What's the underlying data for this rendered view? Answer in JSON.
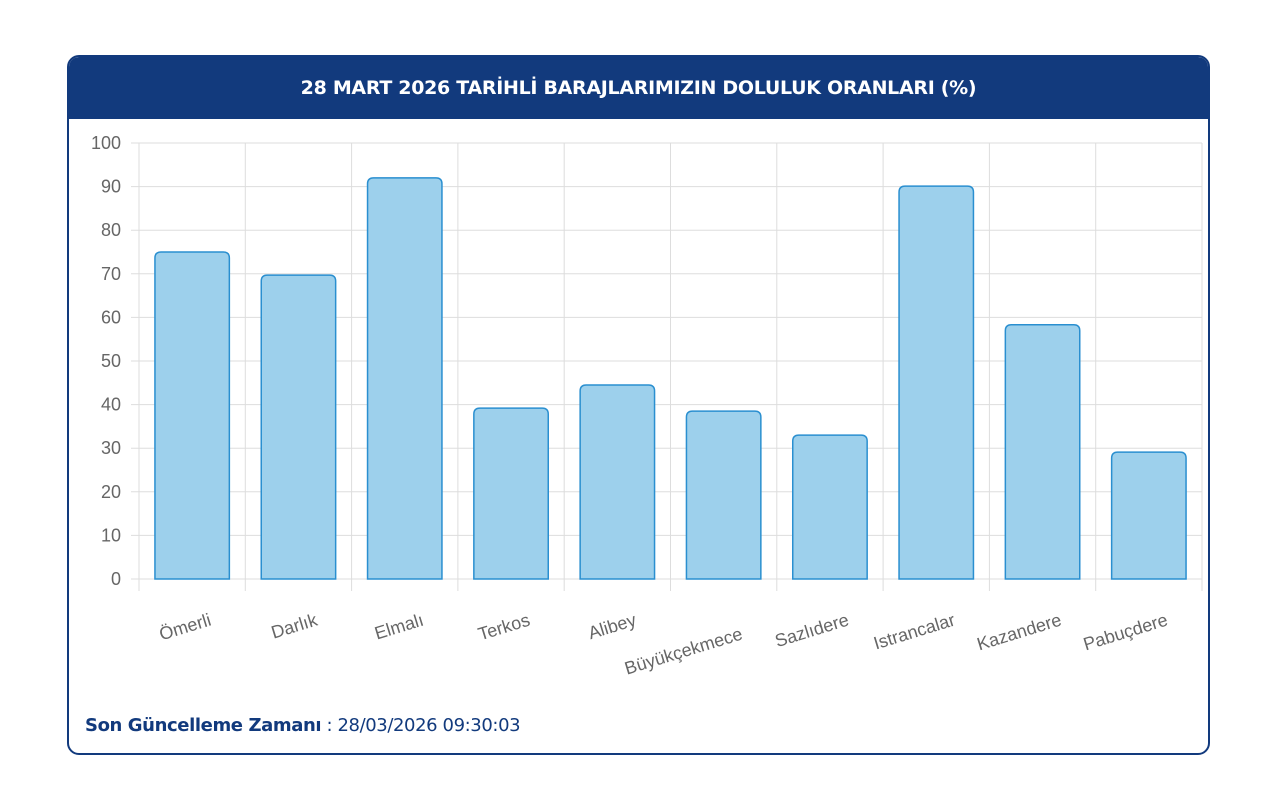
{
  "header": {
    "title": "28 MART 2026 TARİHLİ BARAJLARIMIZIN DOLULUK ORANLARI (%)"
  },
  "footer": {
    "label": "Son Güncelleme Zamanı",
    "separator": " : ",
    "value": "28/03/2026 09:30:03"
  },
  "colors": {
    "header_bg": "#123a7d",
    "bar_fill": "#9dd0ec",
    "bar_border": "#2a8fd0",
    "grid": "#dddddd",
    "tick_text": "#666666"
  },
  "chart_data": {
    "type": "bar",
    "title": "28 MART 2026 TARİHLİ BARAJLARIMIZIN DOLULUK ORANLARI (%)",
    "xlabel": "",
    "ylabel": "",
    "categories": [
      "Ömerli",
      "Darlık",
      "Elmalı",
      "Terkos",
      "Alibey",
      "Büyükçekmece",
      "Sazlıdere",
      "Istrancalar",
      "Kazandere",
      "Pabuçdere"
    ],
    "values": [
      75.0,
      69.7,
      92.0,
      39.2,
      44.5,
      38.5,
      33.0,
      90.1,
      58.3,
      29.1
    ],
    "ylim": [
      0,
      100
    ],
    "yticks": [
      0,
      10,
      20,
      30,
      40,
      50,
      60,
      70,
      80,
      90,
      100
    ],
    "grid": true,
    "legend": null
  }
}
